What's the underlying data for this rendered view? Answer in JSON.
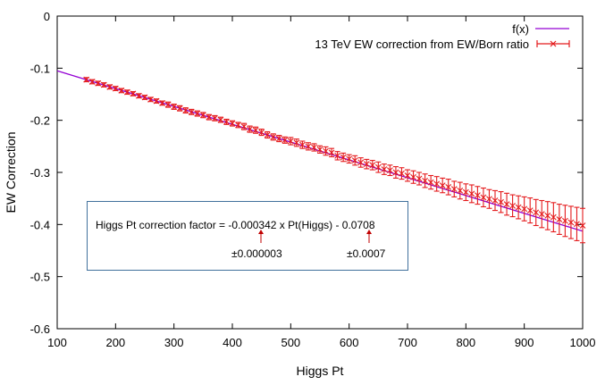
{
  "chart_data": {
    "type": "scatter",
    "title": "",
    "xlabel": "Higgs Pt",
    "ylabel": "EW Correction",
    "xlim": [
      100,
      1000
    ],
    "ylim": [
      -0.6,
      0
    ],
    "xticks": [
      "100",
      "200",
      "300",
      "400",
      "500",
      "600",
      "700",
      "800",
      "900",
      "1000"
    ],
    "yticks": [
      "0",
      "-0.1",
      "-0.2",
      "-0.3",
      "-0.4",
      "-0.5",
      "-0.6"
    ],
    "legend_position": "top-right",
    "colors": {
      "fit": "#9400d3",
      "data": "#e41a1c",
      "box_border": "#41719c"
    },
    "fit": {
      "name": "f(x)",
      "slope": -0.000342,
      "intercept": -0.0708
    },
    "series": [
      {
        "name": "13 TeV EW correction from EW/Born ratio",
        "points": [
          {
            "x": 150,
            "y": -0.122,
            "err": 0.004
          },
          {
            "x": 160,
            "y": -0.126,
            "err": 0.004
          },
          {
            "x": 170,
            "y": -0.129,
            "err": 0.004
          },
          {
            "x": 180,
            "y": -0.132,
            "err": 0.004
          },
          {
            "x": 190,
            "y": -0.136,
            "err": 0.004
          },
          {
            "x": 200,
            "y": -0.139,
            "err": 0.004
          },
          {
            "x": 210,
            "y": -0.143,
            "err": 0.004
          },
          {
            "x": 220,
            "y": -0.146,
            "err": 0.004
          },
          {
            "x": 230,
            "y": -0.149,
            "err": 0.004
          },
          {
            "x": 240,
            "y": -0.153,
            "err": 0.004
          },
          {
            "x": 250,
            "y": -0.156,
            "err": 0.004
          },
          {
            "x": 260,
            "y": -0.16,
            "err": 0.004
          },
          {
            "x": 270,
            "y": -0.163,
            "err": 0.004
          },
          {
            "x": 280,
            "y": -0.167,
            "err": 0.004
          },
          {
            "x": 290,
            "y": -0.17,
            "err": 0.005
          },
          {
            "x": 300,
            "y": -0.174,
            "err": 0.005
          },
          {
            "x": 310,
            "y": -0.177,
            "err": 0.005
          },
          {
            "x": 320,
            "y": -0.181,
            "err": 0.005
          },
          {
            "x": 330,
            "y": -0.184,
            "err": 0.005
          },
          {
            "x": 340,
            "y": -0.187,
            "err": 0.005
          },
          {
            "x": 350,
            "y": -0.19,
            "err": 0.005
          },
          {
            "x": 360,
            "y": -0.194,
            "err": 0.005
          },
          {
            "x": 370,
            "y": -0.196,
            "err": 0.005
          },
          {
            "x": 380,
            "y": -0.199,
            "err": 0.005
          },
          {
            "x": 390,
            "y": -0.203,
            "err": 0.005
          },
          {
            "x": 400,
            "y": -0.206,
            "err": 0.005
          },
          {
            "x": 410,
            "y": -0.209,
            "err": 0.005
          },
          {
            "x": 420,
            "y": -0.212,
            "err": 0.006
          },
          {
            "x": 430,
            "y": -0.217,
            "err": 0.006
          },
          {
            "x": 440,
            "y": -0.219,
            "err": 0.006
          },
          {
            "x": 450,
            "y": -0.223,
            "err": 0.006
          },
          {
            "x": 460,
            "y": -0.228,
            "err": 0.006
          },
          {
            "x": 470,
            "y": -0.232,
            "err": 0.006
          },
          {
            "x": 480,
            "y": -0.235,
            "err": 0.006
          },
          {
            "x": 490,
            "y": -0.238,
            "err": 0.006
          },
          {
            "x": 500,
            "y": -0.24,
            "err": 0.007
          },
          {
            "x": 510,
            "y": -0.243,
            "err": 0.007
          },
          {
            "x": 520,
            "y": -0.247,
            "err": 0.007
          },
          {
            "x": 530,
            "y": -0.25,
            "err": 0.007
          },
          {
            "x": 540,
            "y": -0.252,
            "err": 0.007
          },
          {
            "x": 550,
            "y": -0.256,
            "err": 0.007
          },
          {
            "x": 560,
            "y": -0.259,
            "err": 0.008
          },
          {
            "x": 570,
            "y": -0.262,
            "err": 0.008
          },
          {
            "x": 580,
            "y": -0.268,
            "err": 0.008
          },
          {
            "x": 590,
            "y": -0.271,
            "err": 0.008
          },
          {
            "x": 600,
            "y": -0.274,
            "err": 0.008
          },
          {
            "x": 610,
            "y": -0.277,
            "err": 0.009
          },
          {
            "x": 620,
            "y": -0.281,
            "err": 0.009
          },
          {
            "x": 630,
            "y": -0.284,
            "err": 0.009
          },
          {
            "x": 640,
            "y": -0.286,
            "err": 0.009
          },
          {
            "x": 650,
            "y": -0.29,
            "err": 0.01
          },
          {
            "x": 660,
            "y": -0.294,
            "err": 0.01
          },
          {
            "x": 670,
            "y": -0.296,
            "err": 0.01
          },
          {
            "x": 680,
            "y": -0.3,
            "err": 0.011
          },
          {
            "x": 690,
            "y": -0.302,
            "err": 0.011
          },
          {
            "x": 700,
            "y": -0.306,
            "err": 0.011
          },
          {
            "x": 710,
            "y": -0.309,
            "err": 0.012
          },
          {
            "x": 720,
            "y": -0.312,
            "err": 0.012
          },
          {
            "x": 730,
            "y": -0.316,
            "err": 0.013
          },
          {
            "x": 740,
            "y": -0.319,
            "err": 0.013
          },
          {
            "x": 750,
            "y": -0.322,
            "err": 0.014
          },
          {
            "x": 760,
            "y": -0.325,
            "err": 0.014
          },
          {
            "x": 770,
            "y": -0.328,
            "err": 0.015
          },
          {
            "x": 780,
            "y": -0.332,
            "err": 0.015
          },
          {
            "x": 790,
            "y": -0.335,
            "err": 0.016
          },
          {
            "x": 800,
            "y": -0.338,
            "err": 0.016
          },
          {
            "x": 810,
            "y": -0.341,
            "err": 0.017
          },
          {
            "x": 820,
            "y": -0.344,
            "err": 0.017
          },
          {
            "x": 830,
            "y": -0.348,
            "err": 0.018
          },
          {
            "x": 840,
            "y": -0.351,
            "err": 0.018
          },
          {
            "x": 850,
            "y": -0.354,
            "err": 0.019
          },
          {
            "x": 860,
            "y": -0.357,
            "err": 0.02
          },
          {
            "x": 870,
            "y": -0.361,
            "err": 0.021
          },
          {
            "x": 880,
            "y": -0.364,
            "err": 0.021
          },
          {
            "x": 890,
            "y": -0.367,
            "err": 0.022
          },
          {
            "x": 900,
            "y": -0.37,
            "err": 0.023
          },
          {
            "x": 910,
            "y": -0.373,
            "err": 0.024
          },
          {
            "x": 920,
            "y": -0.377,
            "err": 0.025
          },
          {
            "x": 930,
            "y": -0.38,
            "err": 0.026
          },
          {
            "x": 940,
            "y": -0.383,
            "err": 0.027
          },
          {
            "x": 950,
            "y": -0.386,
            "err": 0.028
          },
          {
            "x": 960,
            "y": -0.39,
            "err": 0.029
          },
          {
            "x": 970,
            "y": -0.393,
            "err": 0.03
          },
          {
            "x": 980,
            "y": -0.396,
            "err": 0.031
          },
          {
            "x": 990,
            "y": -0.399,
            "err": 0.032
          },
          {
            "x": 1000,
            "y": -0.402,
            "err": 0.033
          }
        ]
      }
    ]
  },
  "annotation": {
    "formula": "Higgs Pt correction factor = -0.000342 x Pt(Higgs)  -  0.0708",
    "slope_error": "±0.000003",
    "intercept_error": "±0.0007"
  }
}
